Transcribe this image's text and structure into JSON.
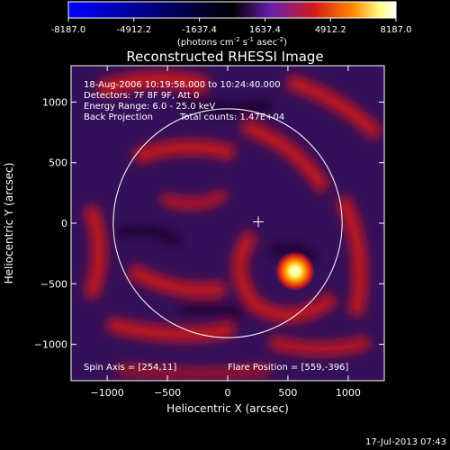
{
  "chart_data": {
    "type": "heatmap",
    "title": "Reconstructed RHESSI Image",
    "colorbar": {
      "ticks": [
        "-8187.0",
        "-4912.2",
        "-1637.4",
        "1637.4",
        "4912.2",
        "8187.0"
      ],
      "range": [
        -8187.0,
        8187.0
      ],
      "units_parts": [
        "(photons cm",
        "-2",
        " s",
        "-1",
        " asec",
        "-2",
        ")"
      ],
      "colormap": [
        "#0000ff",
        "#000000",
        "#6a1fb0",
        "#d41a1a",
        "#ff8a00",
        "#ffff80",
        "#ffffff"
      ]
    },
    "xlabel": "Heliocentric X (arcsec)",
    "ylabel": "Heliocentric Y (arcsec)",
    "xlim": [
      -1300,
      1300
    ],
    "ylim": [
      -1300,
      1300
    ],
    "xticks": [
      -1000,
      -500,
      0,
      500,
      1000
    ],
    "yticks": [
      -1000,
      -500,
      0,
      500,
      1000
    ],
    "xtick_labels": [
      "−1000",
      "−500",
      "0",
      "500",
      "1000"
    ],
    "ytick_labels": [
      "−1000",
      "−500",
      "0",
      "500",
      "1000"
    ],
    "annotations": {
      "time": "18-Aug-2006 10:19:58.000 to 10:24:40.000",
      "detectors": "Detectors: 7F 8F 9F, Att 0",
      "energy": "Energy Range: 6.0 - 25.0 keV",
      "method": "Back Projection",
      "counts": "Total counts: 1.47E+04",
      "spin_axis": "Spin Axis = [254,11]",
      "flare_position": "Flare Position = [559,-396]"
    },
    "spin_axis": [
      254,
      11
    ],
    "flare_position": [
      559,
      -396
    ],
    "limb_radius": 950,
    "grid": false
  },
  "footer": {
    "timestamp": "17-Jul-2013 07:43"
  }
}
